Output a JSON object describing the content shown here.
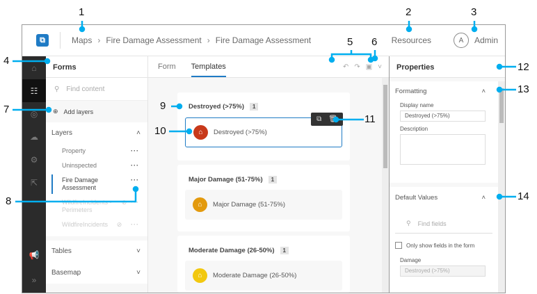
{
  "header": {
    "breadcrumbs": [
      "Maps",
      "Fire Damage Assessment",
      "Fire Damage Assessment"
    ],
    "resources": "Resources",
    "avatar_initial": "A",
    "user": "Admin"
  },
  "forms_panel": {
    "title": "Forms",
    "search_placeholder": "Find content",
    "add_layers": "Add layers",
    "layers_title": "Layers",
    "layers": [
      {
        "label": "Property",
        "state": "normal"
      },
      {
        "label": "Uninspected",
        "state": "normal"
      },
      {
        "label": "Fire Damage Assessment",
        "state": "selected"
      },
      {
        "label": "WildfireIncidents - Perimeters",
        "state": "disabled"
      },
      {
        "label": "WildfireIncidents",
        "state": "disabled"
      }
    ],
    "tables_title": "Tables",
    "basemap_title": "Basemap"
  },
  "center": {
    "tabs": [
      "Form",
      "Templates"
    ],
    "active_tab": "Templates",
    "groups": [
      {
        "title": "Destroyed (>75%)",
        "count": "1",
        "template": "Destroyed (>75%)",
        "color": "#c8391a",
        "selected": true
      },
      {
        "title": "Major Damage (51-75%)",
        "count": "1",
        "template": "Major Damage (51-75%)",
        "color": "#e39a0e"
      },
      {
        "title": "Moderate Damage (26-50%)",
        "count": "1",
        "template": "Moderate Damage (26-50%)",
        "color": "#f2c80f"
      }
    ]
  },
  "properties": {
    "title": "Properties",
    "formatting_title": "Formatting",
    "display_name_label": "Display name",
    "display_name_value": "Destroyed (>75%)",
    "description_label": "Description",
    "default_values_title": "Default Values",
    "find_fields_placeholder": "Find fields",
    "only_show_label": "Only show fields in the form",
    "damage_label": "Damage",
    "damage_value": "Destroyed (>75%)"
  },
  "callouts": [
    "1",
    "2",
    "3",
    "4",
    "5",
    "6",
    "7",
    "8",
    "9",
    "10",
    "11",
    "12",
    "13",
    "14"
  ],
  "accent": "#1f7bc5",
  "callout_color": "#00aeef"
}
